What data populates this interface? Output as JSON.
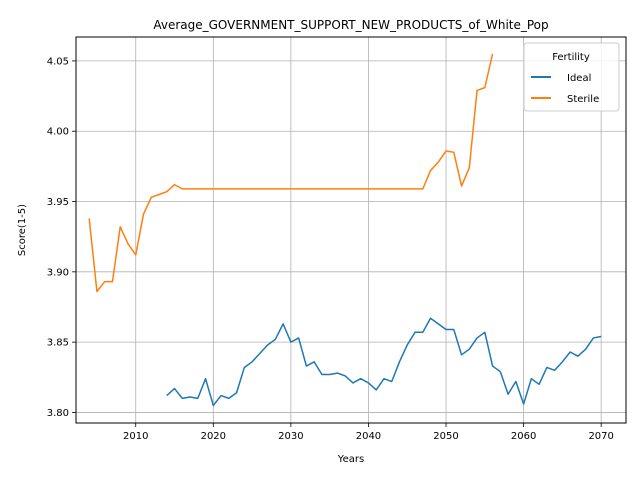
{
  "chart_data": {
    "type": "line",
    "title": "Average_GOVERNMENT_SUPPORT_NEW_PRODUCTS_of_White_Pop",
    "xlabel": "Years",
    "ylabel": "Score(1-5)",
    "xlim": [
      2002.3,
      2073.2
    ],
    "ylim": [
      3.7925,
      4.067
    ],
    "xticks": [
      "2010",
      "2020",
      "2030",
      "2040",
      "2050",
      "2060",
      "2070"
    ],
    "yticks": [
      "3.80",
      "3.85",
      "3.90",
      "3.95",
      "4.00",
      "4.05"
    ],
    "grid": true,
    "legend": {
      "title": "Fertility",
      "placement": "top-right"
    },
    "series": [
      {
        "name": "Ideal",
        "color": "#1f77b4",
        "x": [
          2014,
          2015,
          2016,
          2017,
          2018,
          2019,
          2020,
          2021,
          2022,
          2023,
          2024,
          2025,
          2026,
          2027,
          2028,
          2029,
          2030,
          2031,
          2032,
          2033,
          2034,
          2035,
          2036,
          2037,
          2038,
          2039,
          2040,
          2041,
          2042,
          2043,
          2044,
          2045,
          2046,
          2047,
          2048,
          2049,
          2050,
          2051,
          2052,
          2053,
          2054,
          2055,
          2056,
          2057,
          2058,
          2059,
          2060,
          2061,
          2062,
          2063,
          2064,
          2065,
          2066,
          2067,
          2068,
          2069,
          2070
        ],
        "y": [
          3.812,
          3.817,
          3.81,
          3.811,
          3.81,
          3.824,
          3.805,
          3.812,
          3.81,
          3.814,
          3.832,
          3.836,
          3.842,
          3.848,
          3.852,
          3.863,
          3.85,
          3.853,
          3.833,
          3.836,
          3.827,
          3.827,
          3.828,
          3.826,
          3.821,
          3.824,
          3.821,
          3.816,
          3.824,
          3.822,
          3.836,
          3.848,
          3.857,
          3.857,
          3.867,
          3.863,
          3.859,
          3.859,
          3.841,
          3.845,
          3.853,
          3.857,
          3.833,
          3.829,
          3.813,
          3.822,
          3.806,
          3.824,
          3.82,
          3.832,
          3.83,
          3.836,
          3.843,
          3.84,
          3.845,
          3.853,
          3.854
        ]
      },
      {
        "name": "Sterile",
        "color": "#ff7f0e",
        "x": [
          2004,
          2005,
          2006,
          2007,
          2008,
          2009,
          2010,
          2011,
          2012,
          2013,
          2014,
          2015,
          2016,
          2017,
          2018,
          2019,
          2020,
          2021,
          2022,
          2023,
          2024,
          2025,
          2026,
          2027,
          2028,
          2029,
          2030,
          2031,
          2032,
          2033,
          2034,
          2035,
          2036,
          2037,
          2038,
          2039,
          2040,
          2041,
          2042,
          2043,
          2044,
          2045,
          2046,
          2047,
          2048,
          2049,
          2050,
          2051,
          2052,
          2053,
          2054,
          2055,
          2056
        ],
        "y": [
          3.938,
          3.886,
          3.893,
          3.893,
          3.932,
          3.92,
          3.912,
          3.941,
          3.953,
          3.955,
          3.957,
          3.962,
          3.959,
          3.959,
          3.959,
          3.959,
          3.959,
          3.959,
          3.959,
          3.959,
          3.959,
          3.959,
          3.959,
          3.959,
          3.959,
          3.959,
          3.959,
          3.959,
          3.959,
          3.959,
          3.959,
          3.959,
          3.959,
          3.959,
          3.959,
          3.959,
          3.959,
          3.959,
          3.959,
          3.959,
          3.959,
          3.959,
          3.959,
          3.959,
          3.972,
          3.978,
          3.986,
          3.985,
          3.961,
          3.974,
          4.029,
          4.031,
          4.055
        ]
      }
    ]
  }
}
